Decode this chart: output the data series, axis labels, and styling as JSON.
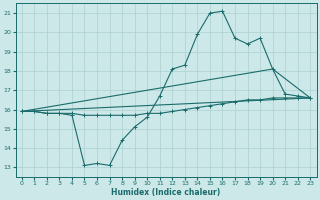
{
  "xlabel": "Humidex (Indice chaleur)",
  "bg_color": "#cde8e8",
  "grid_color": "#add0d0",
  "line_color": "#1a6b6b",
  "xlim": [
    -0.5,
    23.5
  ],
  "ylim": [
    12.5,
    21.5
  ],
  "yticks": [
    13,
    14,
    15,
    16,
    17,
    18,
    19,
    20,
    21
  ],
  "xticks": [
    0,
    1,
    2,
    3,
    4,
    5,
    6,
    7,
    8,
    9,
    10,
    11,
    12,
    13,
    14,
    15,
    16,
    17,
    18,
    19,
    20,
    21,
    22,
    23
  ],
  "line_main": {
    "x": [
      0,
      1,
      2,
      3,
      4,
      5,
      6,
      7,
      8,
      9,
      10,
      11,
      12,
      13,
      14,
      15,
      16,
      17,
      18,
      19,
      20,
      21,
      22,
      23
    ],
    "y": [
      15.9,
      15.9,
      15.8,
      15.8,
      15.7,
      13.1,
      13.2,
      13.1,
      14.4,
      15.1,
      15.6,
      16.7,
      18.1,
      18.3,
      19.9,
      21.0,
      21.1,
      19.7,
      19.4,
      19.7,
      18.1,
      16.8,
      16.7,
      16.6
    ]
  },
  "line_flat": {
    "x": [
      0,
      1,
      2,
      3,
      4,
      5,
      6,
      7,
      8,
      9,
      10,
      11,
      12,
      13,
      14,
      15,
      16,
      17,
      18,
      19,
      20,
      21,
      22,
      23
    ],
    "y": [
      15.9,
      15.9,
      15.8,
      15.8,
      15.8,
      15.7,
      15.7,
      15.7,
      15.7,
      15.7,
      15.8,
      15.8,
      15.9,
      16.0,
      16.1,
      16.2,
      16.3,
      16.4,
      16.5,
      16.5,
      16.6,
      16.6,
      16.6,
      16.6
    ]
  },
  "line_diag1": {
    "x": [
      0,
      23
    ],
    "y": [
      15.9,
      16.6
    ]
  },
  "line_diag2": {
    "x": [
      0,
      20,
      23
    ],
    "y": [
      15.9,
      18.1,
      16.6
    ]
  }
}
